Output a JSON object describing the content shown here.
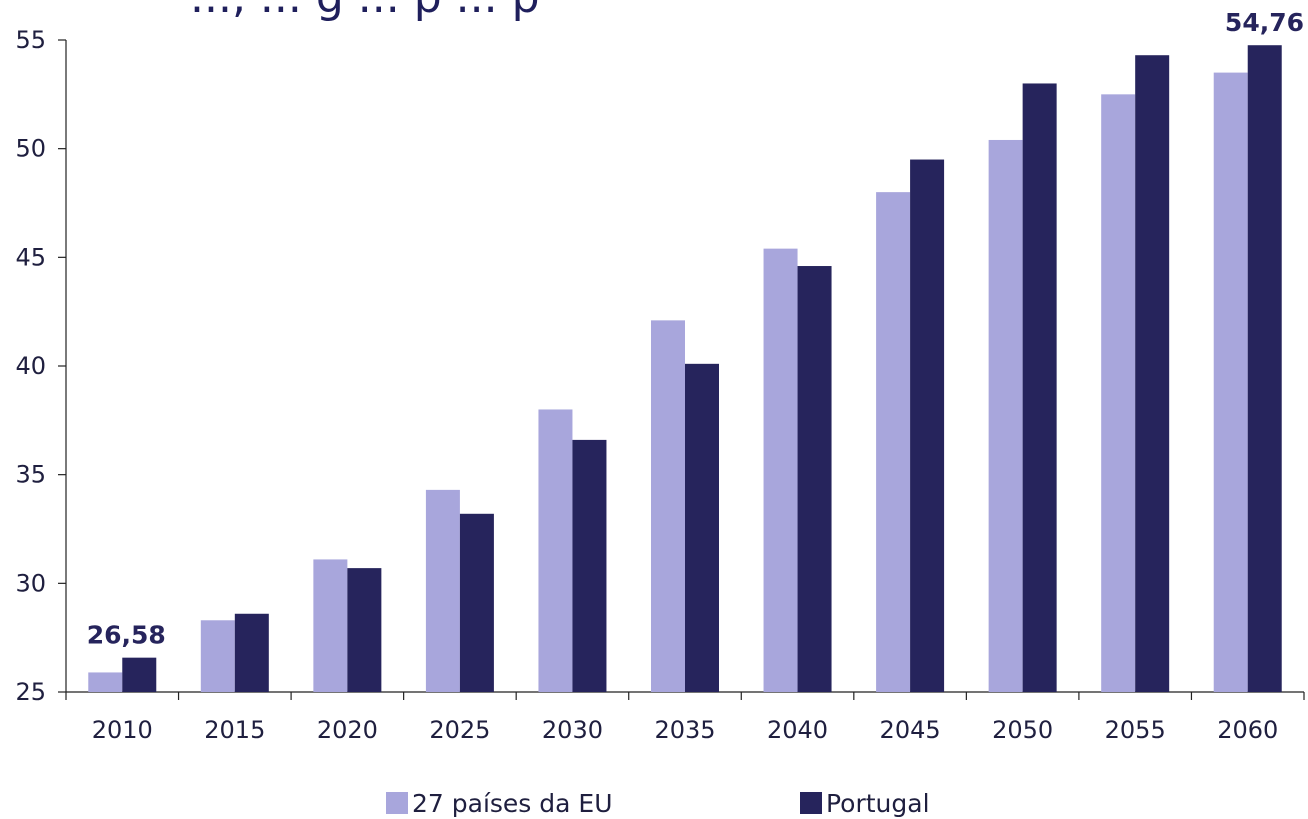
{
  "chart_data": {
    "type": "bar",
    "title": "..., ... g ... p ... p",
    "categories": [
      "2010",
      "2015",
      "2020",
      "2025",
      "2030",
      "2035",
      "2040",
      "2045",
      "2050",
      "2055",
      "2060"
    ],
    "series": [
      {
        "name": "27 países da EU",
        "color": "#a8a6dc",
        "values": [
          25.9,
          28.3,
          31.1,
          34.3,
          38.0,
          42.1,
          45.4,
          48.0,
          50.4,
          52.5,
          53.5
        ]
      },
      {
        "name": "Portugal",
        "color": "#26245c",
        "values": [
          26.58,
          28.6,
          30.7,
          33.2,
          36.6,
          40.1,
          44.6,
          49.5,
          53.0,
          54.3,
          54.76
        ]
      }
    ],
    "data_labels": [
      {
        "series": 1,
        "category": 0,
        "text": "26,58"
      },
      {
        "series": 1,
        "category": 10,
        "text": "54,76"
      }
    ],
    "yticks": [
      "25",
      "30",
      "35",
      "40",
      "45",
      "50",
      "55"
    ],
    "ylim": [
      25,
      55
    ],
    "xlabel": "",
    "ylabel": "",
    "grid": false,
    "legend": "bottom"
  }
}
